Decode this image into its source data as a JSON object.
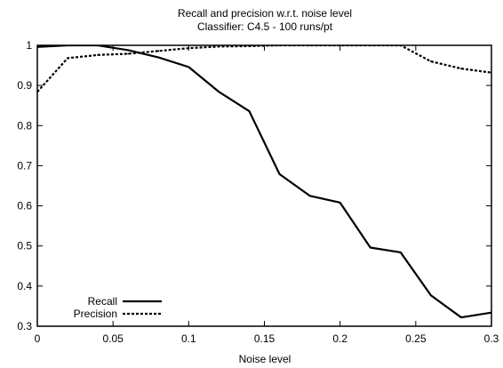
{
  "chart_data": {
    "type": "line",
    "title": "Recall and precision  w.r.t. noise level",
    "subtitle": "Classifier: C4.5 - 100 runs/pt",
    "xlabel": "Noise level",
    "ylabel": "",
    "xlim": [
      0,
      0.3
    ],
    "ylim": [
      0.3,
      1.0
    ],
    "x_ticks": [
      "0",
      "0.05",
      "0.1",
      "0.15",
      "0.2",
      "0.25",
      "0.3"
    ],
    "y_ticks": [
      "0.3",
      "0.4",
      "0.5",
      "0.6",
      "0.7",
      "0.8",
      "0.9",
      "1"
    ],
    "grid": false,
    "legend_position": "bottom-left",
    "x": [
      0,
      0.02,
      0.04,
      0.06,
      0.08,
      0.1,
      0.12,
      0.14,
      0.16,
      0.18,
      0.2,
      0.22,
      0.24,
      0.26,
      0.28,
      0.3
    ],
    "series": [
      {
        "name": "Recall",
        "line_style": "solid",
        "values": [
          0.996,
          1.0,
          1.0,
          0.988,
          0.97,
          0.946,
          0.884,
          0.836,
          0.679,
          0.625,
          0.608,
          0.496,
          0.484,
          0.377,
          0.322,
          0.334
        ]
      },
      {
        "name": "Precision",
        "line_style": "dashed",
        "values": [
          0.884,
          0.968,
          0.976,
          0.979,
          0.986,
          0.993,
          0.997,
          0.998,
          1.0,
          1.0,
          1.0,
          1.0,
          1.0,
          0.96,
          0.942,
          0.932
        ]
      }
    ]
  }
}
